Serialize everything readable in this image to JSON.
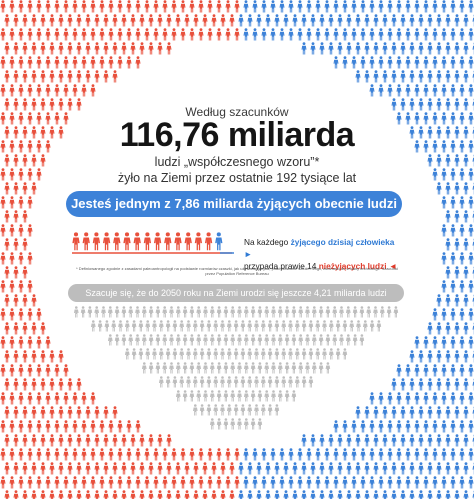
{
  "intro": "Według szacunków",
  "headline": "116,76 miliarda",
  "subline1": "ludzi „współczesnego wzoru”*",
  "subline2": "żyło na Ziemi przez ostatnie 192 tysiące lat",
  "banner": "Jesteś jednym z 7,86 miliarda żyjących obecnie ludzi",
  "note": {
    "prefix1": "Na każdego ",
    "highlight1": "żyjącego dzisiaj człowieka",
    "prefix2": "przypada prawie 14 ",
    "highlight2": "nieżyjących ludzi"
  },
  "footnote": "* Definiowanego zgodnie z zasadami paleoantropologii na podstawie rozmiarów czaszki, jak używanie języka, praktykowanie sztuki i religii, zdolności do zmiany technologii. Szacunki przez Population Reference Bureau",
  "future_bar": "Szacuje się, że do 2050 roku na Ziemi urodzi się jeszcze 4,21 miliarda ludzi",
  "colors": {
    "red": "#e8503c",
    "blue": "#3d82d8",
    "gray": "#bdbdbd"
  }
}
